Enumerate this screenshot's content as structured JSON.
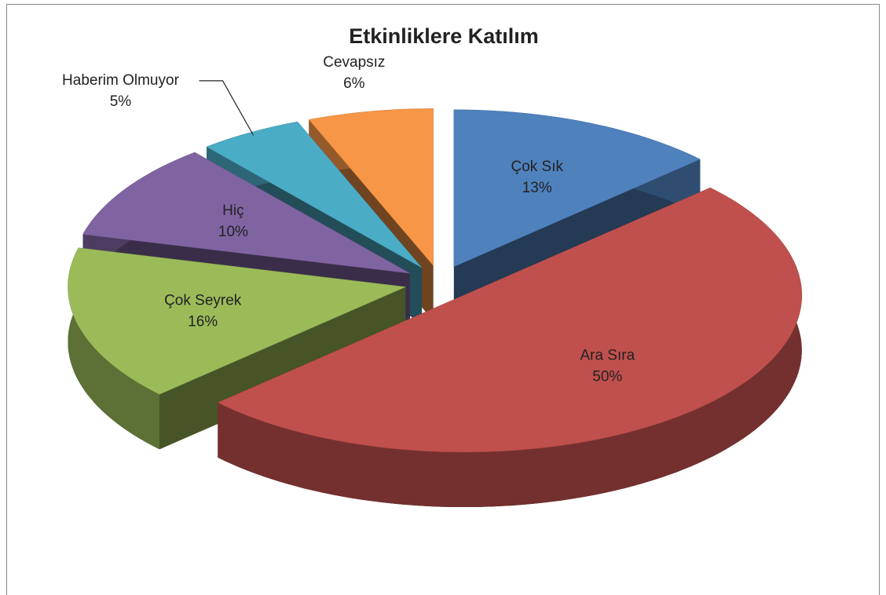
{
  "chart_data": {
    "type": "pie",
    "title": "Etkinliklere Katılım",
    "categories": [
      "Çok Sık",
      "Ara Sıra",
      "Çok Seyrek",
      "Hiç",
      "Haberim Olmuyor",
      "Cevapsız"
    ],
    "values": [
      13,
      50,
      16,
      10,
      5,
      6
    ],
    "value_labels": [
      "13%",
      "50%",
      "16%",
      "10%",
      "5%",
      "6%"
    ],
    "colors": [
      "#4f81bd",
      "#c0504d",
      "#9bbb59",
      "#8064a2",
      "#4bacc6",
      "#f79646"
    ]
  }
}
